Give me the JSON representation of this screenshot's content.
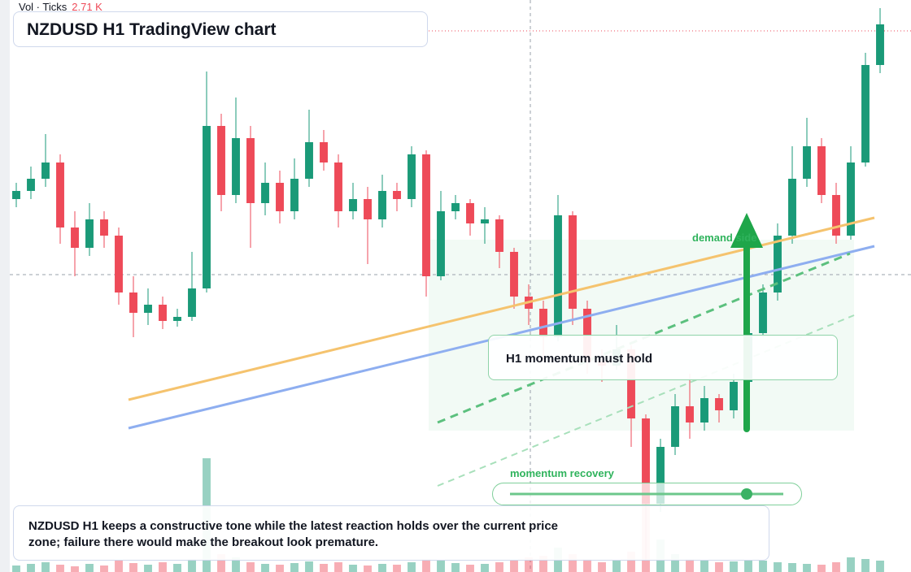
{
  "chart_data": {
    "type": "candlestick",
    "title": "NZDUSD H1 TradingView chart",
    "volume_label": "Vol · Ticks",
    "volume_value": "2.71 K",
    "zone_label": "demand side",
    "callout": "H1 momentum must hold",
    "slider_label": "momentum recovery",
    "summary": "NZDUSD H1 keeps a constructive tone while the latest reaction holds over the current price zone; failure there would make the breakout look premature.",
    "ylim": [
      0,
      700
    ],
    "volume_lim": [
      0,
      700
    ],
    "up_color": "#1a9a78",
    "down_color": "#ee4a58",
    "candles": [
      [
        455,
        475,
        445,
        465
      ],
      [
        465,
        495,
        455,
        480
      ],
      [
        480,
        535,
        470,
        500
      ],
      [
        500,
        510,
        400,
        420
      ],
      [
        420,
        440,
        360,
        395
      ],
      [
        395,
        450,
        385,
        430
      ],
      [
        430,
        440,
        395,
        410
      ],
      [
        410,
        420,
        325,
        340
      ],
      [
        340,
        360,
        285,
        315
      ],
      [
        315,
        345,
        300,
        325
      ],
      [
        325,
        335,
        295,
        305
      ],
      [
        305,
        320,
        298,
        310
      ],
      [
        310,
        390,
        305,
        345
      ],
      [
        345,
        612,
        340,
        545
      ],
      [
        545,
        560,
        440,
        460
      ],
      [
        460,
        580,
        450,
        530
      ],
      [
        530,
        545,
        395,
        450
      ],
      [
        450,
        500,
        435,
        475
      ],
      [
        475,
        490,
        425,
        440
      ],
      [
        440,
        505,
        430,
        480
      ],
      [
        480,
        565,
        470,
        525
      ],
      [
        525,
        540,
        490,
        500
      ],
      [
        500,
        510,
        420,
        440
      ],
      [
        440,
        475,
        430,
        455
      ],
      [
        455,
        470,
        375,
        430
      ],
      [
        430,
        485,
        420,
        465
      ],
      [
        465,
        475,
        440,
        455
      ],
      [
        455,
        520,
        445,
        510
      ],
      [
        510,
        515,
        335,
        360
      ],
      [
        360,
        465,
        355,
        440
      ],
      [
        440,
        460,
        430,
        450
      ],
      [
        450,
        455,
        410,
        425
      ],
      [
        425,
        445,
        400,
        430
      ],
      [
        430,
        435,
        370,
        390
      ],
      [
        390,
        395,
        320,
        335
      ],
      [
        335,
        350,
        300,
        320
      ],
      [
        320,
        330,
        255,
        285
      ],
      [
        285,
        460,
        280,
        435
      ],
      [
        435,
        440,
        300,
        320
      ],
      [
        320,
        330,
        240,
        255
      ],
      [
        255,
        270,
        230,
        250
      ],
      [
        250,
        300,
        245,
        270
      ],
      [
        270,
        275,
        150,
        185
      ],
      [
        185,
        190,
        10,
        80
      ],
      [
        80,
        160,
        70,
        150
      ],
      [
        150,
        215,
        140,
        200
      ],
      [
        200,
        240,
        160,
        180
      ],
      [
        180,
        225,
        170,
        210
      ],
      [
        210,
        215,
        180,
        195
      ],
      [
        195,
        240,
        185,
        230
      ],
      [
        230,
        300,
        220,
        290
      ],
      [
        290,
        350,
        285,
        340
      ],
      [
        340,
        425,
        330,
        410
      ],
      [
        410,
        520,
        400,
        480
      ],
      [
        480,
        555,
        470,
        520
      ],
      [
        520,
        530,
        450,
        460
      ],
      [
        460,
        475,
        400,
        410
      ],
      [
        410,
        520,
        405,
        500
      ],
      [
        500,
        635,
        495,
        620
      ],
      [
        620,
        690,
        610,
        670
      ]
    ],
    "volumes": [
      8,
      10,
      12,
      9,
      7,
      10,
      8,
      14,
      11,
      9,
      12,
      10,
      16,
      140,
      22,
      18,
      12,
      10,
      9,
      11,
      13,
      10,
      12,
      9,
      8,
      10,
      9,
      12,
      16,
      14,
      11,
      9,
      10,
      12,
      15,
      18,
      20,
      30,
      22,
      16,
      12,
      14,
      25,
      90,
      40,
      22,
      16,
      14,
      12,
      13,
      15,
      14,
      12,
      11,
      10,
      9,
      12,
      18,
      16,
      14
    ]
  }
}
